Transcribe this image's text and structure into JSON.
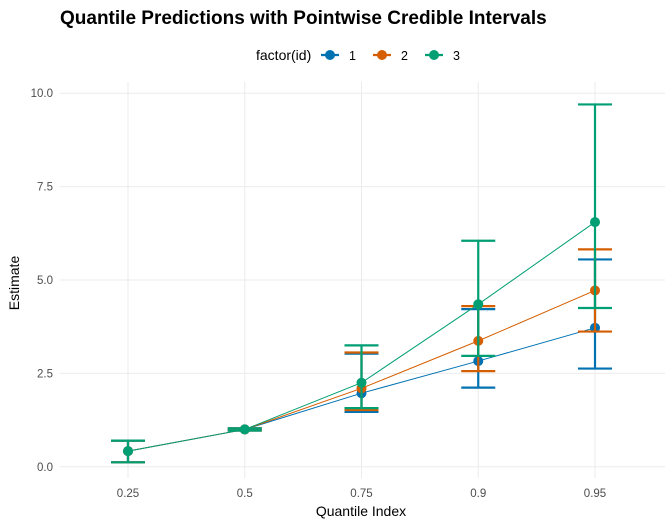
{
  "chart_data": {
    "type": "line",
    "title": "Quantile Predictions with Pointwise Credible Intervals",
    "xlabel": "Quantile Index",
    "ylabel": "Estimate",
    "legend": {
      "title": "factor(id)",
      "position": "top"
    },
    "categories": [
      "0.25",
      "0.5",
      "0.75",
      "0.9",
      "0.95"
    ],
    "ylim": [
      -0.3,
      10.3
    ],
    "yticks": [
      0.0,
      2.5,
      5.0,
      7.5,
      10.0
    ],
    "ytick_labels": [
      "0.0",
      "2.5",
      "5.0",
      "7.5",
      "10.0"
    ],
    "grid": true,
    "series": [
      {
        "name": "1",
        "color": "#0072B2",
        "values": [
          0.42,
          1.0,
          1.97,
          2.83,
          3.72
        ],
        "lower": [
          0.12,
          0.97,
          1.47,
          2.12,
          2.63
        ],
        "upper": [
          0.7,
          1.03,
          3.03,
          4.22,
          5.55
        ]
      },
      {
        "name": "2",
        "color": "#D55E00",
        "values": [
          0.42,
          1.0,
          2.1,
          3.37,
          4.72
        ],
        "lower": [
          0.12,
          0.97,
          1.52,
          2.56,
          3.62
        ],
        "upper": [
          0.7,
          1.03,
          3.06,
          4.3,
          5.82
        ]
      },
      {
        "name": "3",
        "color": "#009E73",
        "values": [
          0.42,
          1.0,
          2.25,
          4.35,
          6.55
        ],
        "lower": [
          0.12,
          0.97,
          1.57,
          2.97,
          4.25
        ],
        "upper": [
          0.7,
          1.03,
          3.25,
          6.05,
          9.7
        ]
      }
    ]
  }
}
